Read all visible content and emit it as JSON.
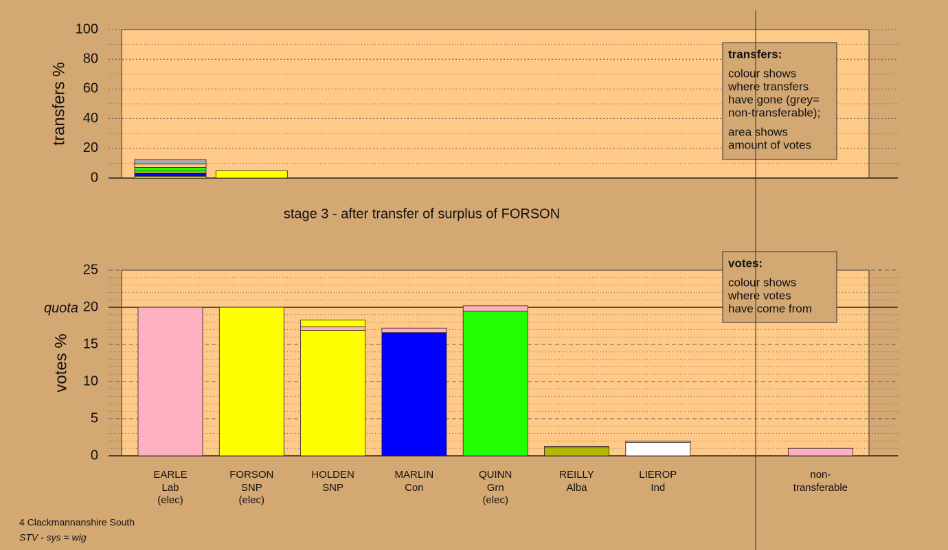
{
  "caption": "stage 3 - after transfer of surplus of FORSON",
  "footer": [
    "4 Clackmannanshire South",
    "STV - sys = wig"
  ],
  "chart_data": [
    {
      "type": "stacked-bar",
      "ylabel": "transfers %",
      "ylim": [
        0,
        100
      ],
      "yticks": [
        0,
        20,
        40,
        60,
        80,
        100
      ],
      "minor_yticks": [
        10,
        30,
        50,
        70,
        90
      ],
      "grid_style": "dotted",
      "stacks": [
        [
          {
            "color": "#ffff00",
            "value": 1.2
          },
          {
            "color": "#0000ff",
            "value": 2.3
          },
          {
            "color": "#ffff00",
            "value": 1.2
          },
          {
            "color": "#22ff00",
            "value": 2.5
          },
          {
            "color": "#ffc987",
            "value": 2.3
          },
          {
            "color": "#aaaaaa",
            "value": 3
          }
        ],
        [
          {
            "color": "#ffff00",
            "value": 5
          }
        ]
      ],
      "info_box": {
        "title": "transfers:",
        "paragraphs": [
          [
            "colour shows",
            "where transfers",
            "have gone (grey=",
            "non-transferable);"
          ],
          [
            "area shows",
            "amount of votes"
          ]
        ]
      }
    },
    {
      "type": "stacked-bar",
      "ylabel": "votes %",
      "ylim": [
        0,
        25
      ],
      "yticks": [
        0,
        5,
        10,
        15,
        20,
        25
      ],
      "minor_yticks": [
        1,
        2,
        3,
        4,
        6,
        7,
        8,
        9,
        11,
        12,
        13,
        14,
        16,
        17,
        18,
        19,
        21,
        22,
        23,
        24
      ],
      "grid_style": "dashed",
      "quota": 20,
      "quota_label": "quota",
      "categories": [
        "EARLE",
        "FORSON",
        "HOLDEN",
        "MARLIN",
        "QUINN",
        "REILLY",
        "LIEROP",
        null,
        "non-"
      ],
      "parties": [
        "Lab",
        "SNP",
        "SNP",
        "Con",
        "Grn",
        "Alba",
        "Ind",
        null,
        "transferable"
      ],
      "notes": [
        "(elec)",
        "(elec)",
        null,
        null,
        "(elec)",
        null,
        null,
        null,
        null
      ],
      "stacks": [
        [
          {
            "color": "#ffb0c0",
            "value": 20
          }
        ],
        [
          {
            "color": "#ffff00",
            "value": 20
          }
        ],
        [
          {
            "color": "#ffff00",
            "value": 16.9
          },
          {
            "color": "#ffb0c0",
            "value": 0.5
          },
          {
            "color": "#ffff00",
            "value": 0.9
          }
        ],
        [
          {
            "color": "#0000ff",
            "value": 16.6
          },
          {
            "color": "#ffb0c0",
            "value": 0.6
          }
        ],
        [
          {
            "color": "#22ff00",
            "value": 19.5
          },
          {
            "color": "#ffb0c0",
            "value": 0.7
          }
        ],
        [
          {
            "color": "#b5b800",
            "value": 1.1
          },
          {
            "color": "#ffb0c0",
            "value": 0.15
          }
        ],
        [
          {
            "color": "#ffffff",
            "value": 1.8
          },
          {
            "color": "#ffb0c0",
            "value": 0.2
          }
        ],
        [],
        [
          {
            "color": "#ffb0c0",
            "value": 1
          }
        ]
      ],
      "info_box": {
        "title": "votes:",
        "paragraphs": [
          [
            "colour shows",
            "where votes",
            "have come from"
          ]
        ]
      }
    }
  ]
}
